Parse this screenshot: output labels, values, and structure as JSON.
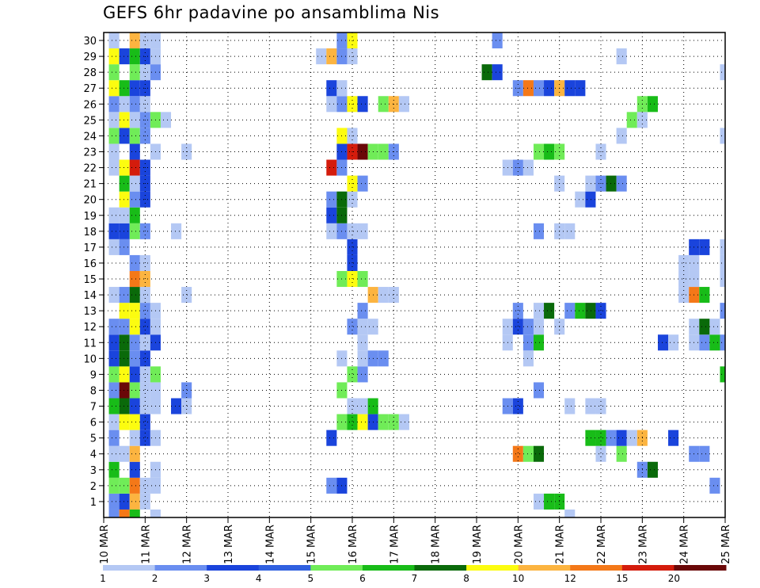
{
  "chart_data": {
    "type": "heatmap",
    "title": "GEFS 6hr padavine po ansamblima Nis",
    "y_ticks": [
      "30",
      "29",
      "28",
      "27",
      "26",
      "25",
      "24",
      "23",
      "22",
      "21",
      "20",
      "19",
      "18",
      "17",
      "16",
      "15",
      "14",
      "13",
      "12",
      "11",
      "10",
      "9",
      "8",
      "7",
      "6",
      "5",
      "4",
      "3",
      "2",
      "1"
    ],
    "y_range": [
      0,
      30.5
    ],
    "x_ticks": [
      "10 MAR",
      "11 MAR",
      "12 MAR",
      "13 MAR",
      "14 MAR",
      "15 MAR",
      "16 MAR",
      "17 MAR",
      "18 MAR",
      "19 MAR",
      "20 MAR",
      "21 MAR",
      "22 MAR",
      "23 MAR",
      "24 MAR",
      "25 MAR"
    ],
    "x_range_days": [
      0,
      15
    ],
    "step_days": 0.25,
    "grid": true,
    "legend": {
      "position": "bottom",
      "labels": [
        "1",
        "2",
        "3",
        "4",
        "5",
        "6",
        "7",
        "8",
        "10",
        "12",
        "15",
        "20"
      ],
      "colors": [
        "#b4c8f4",
        "#6a8ef0",
        "#1a44dc",
        "#3060e0",
        "#70ec58",
        "#18bc18",
        "#0a6a0a",
        "#fcfc10",
        "#fcb440",
        "#f47818",
        "#d41c0c",
        "#6a0808"
      ]
    },
    "color_levels": {
      "l1": "#b4c8f4",
      "l2": "#6a8ef0",
      "l3": "#1a44dc",
      "l4": "#70ec58",
      "l5": "#18bc18",
      "l6": "#0a6a0a",
      "l7": "#fcfc10",
      "l8": "#fcb440",
      "l9": "#f47818",
      "l10": "#d41c0c",
      "l11": "#6a0808"
    },
    "cells": [
      [
        0.25,
        0,
        2
      ],
      [
        0.5,
        0,
        9
      ],
      [
        0.75,
        0,
        5
      ],
      [
        1.25,
        0,
        1
      ],
      [
        11.25,
        0,
        1
      ],
      [
        0.25,
        1,
        2
      ],
      [
        0.5,
        1,
        3
      ],
      [
        0.75,
        1,
        8
      ],
      [
        1.0,
        1,
        1
      ],
      [
        10.5,
        1,
        1
      ],
      [
        10.75,
        1,
        5
      ],
      [
        11.0,
        1,
        5
      ],
      [
        0.25,
        2,
        4
      ],
      [
        0.5,
        2,
        4
      ],
      [
        0.75,
        2,
        9
      ],
      [
        1.0,
        2,
        1
      ],
      [
        1.25,
        2,
        1
      ],
      [
        5.5,
        2,
        2
      ],
      [
        5.75,
        2,
        3
      ],
      [
        14.75,
        2,
        2
      ],
      [
        0.25,
        3,
        5
      ],
      [
        0.75,
        3,
        3
      ],
      [
        1.25,
        3,
        1
      ],
      [
        13.0,
        3,
        2
      ],
      [
        13.25,
        3,
        6
      ],
      [
        0.25,
        4,
        1
      ],
      [
        0.5,
        4,
        1
      ],
      [
        0.75,
        4,
        8
      ],
      [
        10.0,
        4,
        9
      ],
      [
        10.25,
        4,
        4
      ],
      [
        10.5,
        4,
        6
      ],
      [
        12.0,
        4,
        1
      ],
      [
        12.5,
        4,
        4
      ],
      [
        14.25,
        4,
        2
      ],
      [
        14.5,
        4,
        2
      ],
      [
        0.25,
        5,
        2
      ],
      [
        0.75,
        5,
        1
      ],
      [
        1.0,
        5,
        3
      ],
      [
        1.25,
        5,
        1
      ],
      [
        5.5,
        5,
        3
      ],
      [
        11.75,
        5,
        5
      ],
      [
        12.0,
        5,
        5
      ],
      [
        12.25,
        5,
        2
      ],
      [
        12.5,
        5,
        3
      ],
      [
        12.75,
        5,
        1
      ],
      [
        13.0,
        5,
        8
      ],
      [
        13.75,
        5,
        3
      ],
      [
        0.25,
        6,
        1
      ],
      [
        0.5,
        6,
        7
      ],
      [
        0.75,
        6,
        7
      ],
      [
        1.0,
        6,
        3
      ],
      [
        5.75,
        6,
        4
      ],
      [
        6.0,
        6,
        5
      ],
      [
        6.25,
        6,
        7
      ],
      [
        6.5,
        6,
        3
      ],
      [
        6.75,
        6,
        4
      ],
      [
        7.0,
        6,
        4
      ],
      [
        7.25,
        6,
        1
      ],
      [
        0.25,
        7,
        5
      ],
      [
        0.5,
        7,
        6
      ],
      [
        0.75,
        7,
        3
      ],
      [
        1.0,
        7,
        1
      ],
      [
        1.25,
        7,
        1
      ],
      [
        1.75,
        7,
        3
      ],
      [
        2.0,
        7,
        1
      ],
      [
        6.0,
        7,
        1
      ],
      [
        6.25,
        7,
        1
      ],
      [
        6.5,
        7,
        5
      ],
      [
        9.75,
        7,
        2
      ],
      [
        10.0,
        7,
        3
      ],
      [
        11.25,
        7,
        1
      ],
      [
        11.75,
        7,
        1
      ],
      [
        12.0,
        7,
        1
      ],
      [
        0.25,
        8,
        2
      ],
      [
        0.5,
        8,
        11
      ],
      [
        0.75,
        8,
        4
      ],
      [
        1.0,
        8,
        1
      ],
      [
        1.25,
        8,
        1
      ],
      [
        2.0,
        8,
        2
      ],
      [
        5.75,
        8,
        4
      ],
      [
        10.5,
        8,
        2
      ],
      [
        0.25,
        9,
        4
      ],
      [
        0.5,
        9,
        7
      ],
      [
        0.75,
        9,
        3
      ],
      [
        1.0,
        9,
        1
      ],
      [
        1.25,
        9,
        4
      ],
      [
        6.0,
        9,
        4
      ],
      [
        6.25,
        9,
        2
      ],
      [
        15.0,
        9,
        5
      ],
      [
        0.25,
        10,
        3
      ],
      [
        0.5,
        10,
        6
      ],
      [
        0.75,
        10,
        2
      ],
      [
        1.0,
        10,
        3
      ],
      [
        5.75,
        10,
        1
      ],
      [
        6.25,
        10,
        1
      ],
      [
        6.5,
        10,
        2
      ],
      [
        6.75,
        10,
        2
      ],
      [
        10.25,
        10,
        1
      ],
      [
        0.25,
        11,
        3
      ],
      [
        0.5,
        11,
        6
      ],
      [
        0.75,
        11,
        2
      ],
      [
        1.0,
        11,
        1
      ],
      [
        1.25,
        11,
        3
      ],
      [
        6.25,
        11,
        1
      ],
      [
        9.75,
        11,
        1
      ],
      [
        10.25,
        11,
        2
      ],
      [
        10.5,
        11,
        5
      ],
      [
        13.5,
        11,
        3
      ],
      [
        13.75,
        11,
        1
      ],
      [
        14.25,
        11,
        1
      ],
      [
        14.5,
        11,
        2
      ],
      [
        14.75,
        11,
        5
      ],
      [
        15.0,
        11,
        2
      ],
      [
        0.25,
        12,
        2
      ],
      [
        0.5,
        12,
        2
      ],
      [
        0.75,
        12,
        7
      ],
      [
        1.0,
        12,
        3
      ],
      [
        1.25,
        12,
        1
      ],
      [
        6.0,
        12,
        2
      ],
      [
        6.25,
        12,
        1
      ],
      [
        6.5,
        12,
        1
      ],
      [
        9.75,
        12,
        1
      ],
      [
        10.0,
        12,
        3
      ],
      [
        10.25,
        12,
        2
      ],
      [
        10.5,
        12,
        1
      ],
      [
        11.0,
        12,
        1
      ],
      [
        14.25,
        12,
        1
      ],
      [
        14.5,
        12,
        6
      ],
      [
        14.75,
        12,
        1
      ],
      [
        0.5,
        13,
        7
      ],
      [
        0.75,
        13,
        7
      ],
      [
        1.0,
        13,
        2
      ],
      [
        1.25,
        13,
        1
      ],
      [
        6.25,
        13,
        2
      ],
      [
        10.0,
        13,
        2
      ],
      [
        10.5,
        13,
        1
      ],
      [
        10.75,
        13,
        6
      ],
      [
        11.25,
        13,
        2
      ],
      [
        11.5,
        13,
        5
      ],
      [
        11.75,
        13,
        6
      ],
      [
        12.0,
        13,
        3
      ],
      [
        15.0,
        13,
        2
      ],
      [
        0.25,
        14,
        1
      ],
      [
        0.5,
        14,
        2
      ],
      [
        0.75,
        14,
        6
      ],
      [
        1.0,
        14,
        1
      ],
      [
        2.0,
        14,
        1
      ],
      [
        6.5,
        14,
        8
      ],
      [
        6.75,
        14,
        1
      ],
      [
        7.0,
        14,
        1
      ],
      [
        14.0,
        14,
        1
      ],
      [
        14.25,
        14,
        9
      ],
      [
        14.5,
        14,
        5
      ],
      [
        0.75,
        15,
        9
      ],
      [
        1.0,
        15,
        8
      ],
      [
        5.75,
        15,
        4
      ],
      [
        6.0,
        15,
        7
      ],
      [
        6.25,
        15,
        4
      ],
      [
        14.0,
        15,
        1
      ],
      [
        14.25,
        15,
        1
      ],
      [
        15.0,
        15,
        1
      ],
      [
        0.75,
        16,
        2
      ],
      [
        1.0,
        16,
        1
      ],
      [
        6.0,
        16,
        3
      ],
      [
        14.0,
        16,
        1
      ],
      [
        14.25,
        16,
        1
      ],
      [
        15.0,
        16,
        1
      ],
      [
        0.25,
        17,
        1
      ],
      [
        0.5,
        17,
        2
      ],
      [
        6.0,
        17,
        3
      ],
      [
        14.25,
        17,
        3
      ],
      [
        14.5,
        17,
        3
      ],
      [
        15.0,
        17,
        1
      ],
      [
        0.25,
        18,
        3
      ],
      [
        0.5,
        18,
        3
      ],
      [
        0.75,
        18,
        4
      ],
      [
        1.0,
        18,
        2
      ],
      [
        1.75,
        18,
        1
      ],
      [
        5.5,
        18,
        1
      ],
      [
        5.75,
        18,
        2
      ],
      [
        6.0,
        18,
        1
      ],
      [
        6.25,
        18,
        1
      ],
      [
        10.5,
        18,
        2
      ],
      [
        11.0,
        18,
        1
      ],
      [
        11.25,
        18,
        1
      ],
      [
        0.25,
        19,
        1
      ],
      [
        0.5,
        19,
        1
      ],
      [
        0.75,
        19,
        5
      ],
      [
        5.5,
        19,
        3
      ],
      [
        5.75,
        19,
        6
      ],
      [
        0.5,
        20,
        7
      ],
      [
        0.75,
        20,
        2
      ],
      [
        1.0,
        20,
        3
      ],
      [
        5.5,
        20,
        2
      ],
      [
        5.75,
        20,
        6
      ],
      [
        6.0,
        20,
        1
      ],
      [
        11.5,
        20,
        1
      ],
      [
        11.75,
        20,
        3
      ],
      [
        0.5,
        21,
        5
      ],
      [
        0.75,
        21,
        1
      ],
      [
        1.0,
        21,
        3
      ],
      [
        6.0,
        21,
        7
      ],
      [
        6.25,
        21,
        2
      ],
      [
        11.0,
        21,
        1
      ],
      [
        11.75,
        21,
        1
      ],
      [
        12.0,
        21,
        2
      ],
      [
        12.25,
        21,
        6
      ],
      [
        12.5,
        21,
        2
      ],
      [
        0.25,
        22,
        1
      ],
      [
        0.5,
        22,
        7
      ],
      [
        0.75,
        22,
        10
      ],
      [
        1.0,
        22,
        3
      ],
      [
        5.5,
        22,
        10
      ],
      [
        5.75,
        22,
        2
      ],
      [
        9.75,
        22,
        1
      ],
      [
        10.0,
        22,
        2
      ],
      [
        10.25,
        22,
        1
      ],
      [
        0.25,
        23,
        1
      ],
      [
        0.75,
        23,
        3
      ],
      [
        1.25,
        23,
        1
      ],
      [
        2.0,
        23,
        1
      ],
      [
        5.75,
        23,
        3
      ],
      [
        6.0,
        23,
        10
      ],
      [
        6.25,
        23,
        11
      ],
      [
        6.5,
        23,
        4
      ],
      [
        6.75,
        23,
        4
      ],
      [
        7.0,
        23,
        2
      ],
      [
        10.5,
        23,
        4
      ],
      [
        10.75,
        23,
        5
      ],
      [
        11.0,
        23,
        4
      ],
      [
        12.0,
        23,
        1
      ],
      [
        0.25,
        24,
        4
      ],
      [
        0.5,
        24,
        3
      ],
      [
        0.75,
        24,
        4
      ],
      [
        1.0,
        24,
        2
      ],
      [
        5.75,
        24,
        7
      ],
      [
        6.0,
        24,
        1
      ],
      [
        12.5,
        24,
        1
      ],
      [
        15.0,
        24,
        1
      ],
      [
        0.25,
        25,
        1
      ],
      [
        0.5,
        25,
        7
      ],
      [
        0.75,
        25,
        1
      ],
      [
        1.0,
        25,
        2
      ],
      [
        1.25,
        25,
        4
      ],
      [
        1.5,
        25,
        1
      ],
      [
        12.75,
        25,
        4
      ],
      [
        13.0,
        25,
        1
      ],
      [
        0.25,
        26,
        2
      ],
      [
        0.5,
        26,
        1
      ],
      [
        0.75,
        26,
        2
      ],
      [
        1.0,
        26,
        1
      ],
      [
        5.5,
        26,
        1
      ],
      [
        5.75,
        26,
        2
      ],
      [
        6.0,
        26,
        7
      ],
      [
        6.25,
        26,
        3
      ],
      [
        6.75,
        26,
        4
      ],
      [
        7.0,
        26,
        8
      ],
      [
        7.25,
        26,
        1
      ],
      [
        13.0,
        26,
        4
      ],
      [
        13.25,
        26,
        5
      ],
      [
        0.25,
        27,
        7
      ],
      [
        0.5,
        27,
        5
      ],
      [
        0.75,
        27,
        3
      ],
      [
        1.0,
        27,
        3
      ],
      [
        5.5,
        27,
        3
      ],
      [
        5.75,
        27,
        1
      ],
      [
        10.0,
        27,
        2
      ],
      [
        10.25,
        27,
        9
      ],
      [
        10.5,
        27,
        2
      ],
      [
        10.75,
        27,
        3
      ],
      [
        11.0,
        27,
        8
      ],
      [
        11.25,
        27,
        3
      ],
      [
        11.5,
        27,
        3
      ],
      [
        0.25,
        28,
        4
      ],
      [
        0.75,
        28,
        4
      ],
      [
        1.0,
        28,
        1
      ],
      [
        1.25,
        28,
        2
      ],
      [
        9.25,
        28,
        6
      ],
      [
        9.5,
        28,
        3
      ],
      [
        15.0,
        28,
        1
      ],
      [
        0.25,
        29,
        7
      ],
      [
        0.5,
        29,
        3
      ],
      [
        0.75,
        29,
        5
      ],
      [
        1.0,
        29,
        3
      ],
      [
        1.25,
        29,
        1
      ],
      [
        5.25,
        29,
        1
      ],
      [
        5.5,
        29,
        8
      ],
      [
        5.75,
        29,
        2
      ],
      [
        6.0,
        29,
        1
      ],
      [
        12.5,
        29,
        1
      ],
      [
        0.25,
        30,
        1
      ],
      [
        0.75,
        30,
        8
      ],
      [
        1.0,
        30,
        1
      ],
      [
        1.25,
        30,
        1
      ],
      [
        5.75,
        30,
        2
      ],
      [
        6.0,
        30,
        7
      ],
      [
        9.5,
        30,
        2
      ]
    ]
  }
}
